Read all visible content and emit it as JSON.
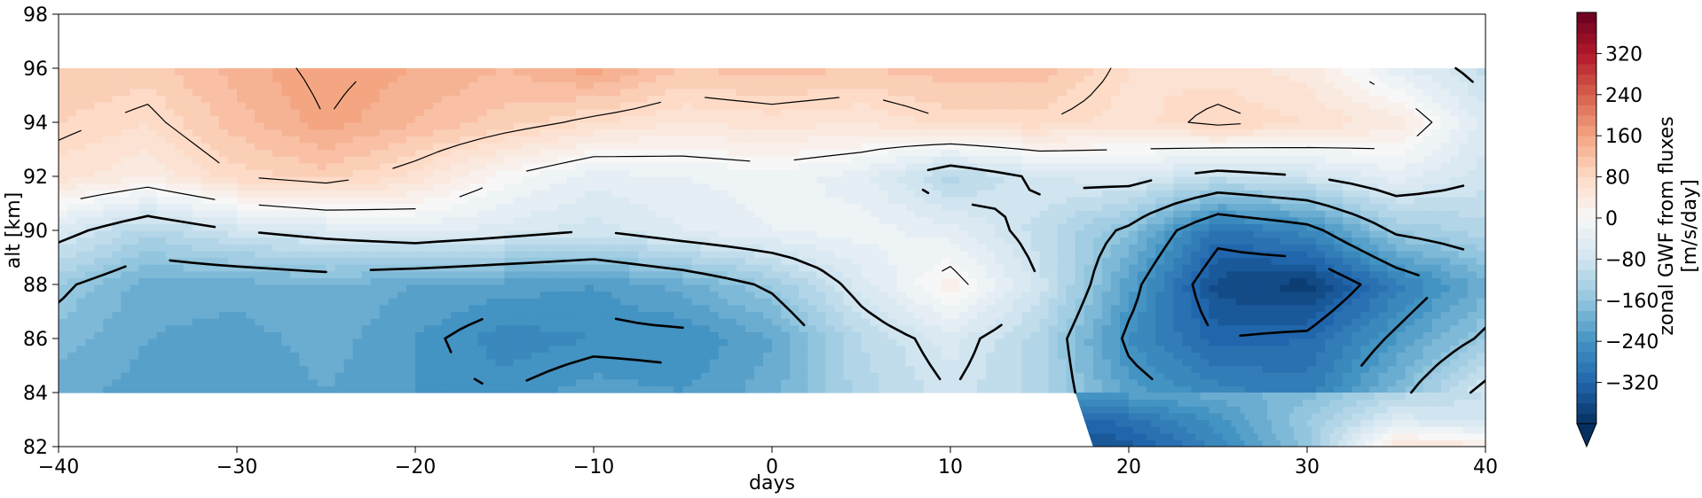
{
  "chart_data": {
    "type": "heatmap",
    "title": "",
    "xlabel": "days",
    "ylabel": "alt [km]",
    "xlim": [
      -40,
      40
    ],
    "ylim": [
      82,
      98
    ],
    "x_ticks": [
      -40,
      -30,
      -20,
      -10,
      0,
      10,
      20,
      30,
      40
    ],
    "x_tick_labels": [
      "−40",
      "−30",
      "−20",
      "−10",
      "0",
      "10",
      "20",
      "30",
      "40"
    ],
    "y_ticks": [
      82,
      84,
      86,
      88,
      90,
      92,
      94,
      96,
      98
    ],
    "y_tick_labels": [
      "82",
      "84",
      "86",
      "88",
      "90",
      "92",
      "94",
      "96",
      "98"
    ],
    "data_x": [
      -40,
      -35,
      -30,
      -25,
      -20,
      -15,
      -10,
      -5,
      0,
      5,
      10,
      15,
      20,
      25,
      30,
      35,
      40
    ],
    "data_y": [
      84,
      86,
      88,
      90,
      92,
      94,
      96
    ],
    "values": [
      [
        -200,
        -220,
        -230,
        -210,
        -230,
        -240,
        -220,
        -230,
        -200,
        -120,
        -80,
        -120,
        -220,
        -260,
        -280,
        -180,
        -60
      ],
      [
        -180,
        -210,
        -220,
        -200,
        -230,
        -260,
        -250,
        -250,
        -210,
        -110,
        -60,
        -120,
        -250,
        -320,
        -310,
        -230,
        -150
      ],
      [
        -150,
        -200,
        -200,
        -190,
        -210,
        -220,
        -230,
        -200,
        -150,
        -60,
        20,
        -80,
        -220,
        -360,
        -380,
        -280,
        -200
      ],
      [
        -60,
        -120,
        -80,
        -60,
        -40,
        -60,
        -80,
        -50,
        -30,
        -20,
        -40,
        -100,
        -170,
        -300,
        -260,
        -150,
        -120
      ],
      [
        60,
        30,
        80,
        100,
        60,
        0,
        -40,
        -30,
        -20,
        -40,
        -120,
        -70,
        -60,
        -100,
        -80,
        -40,
        -80
      ],
      [
        90,
        70,
        120,
        160,
        130,
        100,
        70,
        50,
        60,
        50,
        80,
        80,
        60,
        90,
        70,
        40,
        -60
      ],
      [
        110,
        100,
        140,
        170,
        150,
        130,
        160,
        110,
        120,
        110,
        120,
        120,
        70,
        60,
        40,
        -40,
        -100
      ]
    ],
    "lower_region": {
      "note": "",
      "x": [
        17,
        20,
        25,
        30,
        35,
        40
      ],
      "y": [
        82,
        83,
        84
      ],
      "values": [
        [
          -360,
          -340,
          -260,
          -160,
          60,
          40
        ],
        [
          -320,
          -300,
          -240,
          -150,
          -60,
          -80
        ],
        [
          -230,
          -220,
          -200,
          -180,
          -120,
          -90
        ]
      ]
    },
    "colorbar": {
      "label": "zonal GWF from fluxes\n[m/s/day]",
      "label_line1": "zonal GWF from fluxes",
      "label_line2": "[m/s/day]",
      "vmin": -400,
      "vmax": 400,
      "ticks": [
        -320,
        -240,
        -160,
        -80,
        0,
        80,
        160,
        240,
        320
      ],
      "tick_labels": [
        "−320",
        "−240",
        "−160",
        "−80",
        "0",
        "80",
        "160",
        "240",
        "320"
      ],
      "extend": "min",
      "colormap": "RdBu_r",
      "colors": [
        "#053061",
        "#2166ac",
        "#4393c3",
        "#92c5de",
        "#d1e5f0",
        "#f7f7f7",
        "#fddbc7",
        "#f4a582",
        "#d6604d",
        "#b2182b",
        "#67001f"
      ]
    },
    "contour_overlay": true,
    "contour_color": "#000000"
  }
}
